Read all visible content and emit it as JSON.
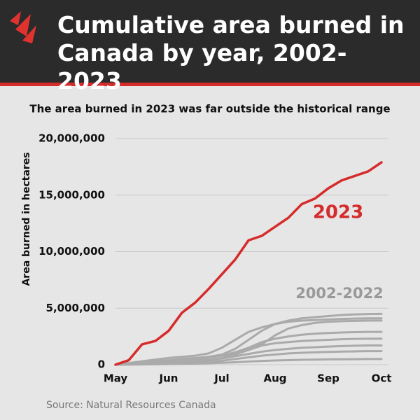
{
  "chart_data": {
    "type": "line",
    "title": "Cumulative area burned in Canada by year, 2002-2023",
    "subtitle": "The area burned in 2023 was far outside the historical range",
    "y_label": "Area burned in hectares",
    "source": "Source: Natural Resources Canada",
    "categories": [
      "May",
      null,
      null,
      null,
      "Jun",
      null,
      null,
      null,
      "Jul",
      null,
      null,
      null,
      "Aug",
      null,
      null,
      null,
      "Sep",
      null,
      null,
      null,
      "Oct"
    ],
    "ylim": [
      0,
      20000000
    ],
    "yticks": [
      0,
      {
        "value": 5000000,
        "label": "5,000,000"
      },
      {
        "value": 10000000,
        "label": "10,000,000"
      },
      {
        "value": 15000000,
        "label": "15,000,000"
      },
      {
        "value": 20000000,
        "label": "20,000,000"
      }
    ],
    "grid": true,
    "series": [
      {
        "name": "2023",
        "color": "#d62b2b",
        "values": [
          0,
          400000,
          1800000,
          2100000,
          3000000,
          4600000,
          5500000,
          6700000,
          8000000,
          9300000,
          11000000,
          11400000,
          12200000,
          13000000,
          14200000,
          14700000,
          15600000,
          16300000,
          16700000,
          17100000,
          17900000
        ]
      },
      {
        "name": "2002-2022",
        "color": "#aaaaaa",
        "values": [
          [
            0,
            100000,
            200000,
            300000,
            400000,
            500000,
            600000,
            700000,
            900000,
            1400000,
            2200000,
            3000000,
            3600000,
            3900000,
            4100000,
            4200000,
            4300000,
            4400000,
            4450000,
            4480000,
            4500000
          ],
          [
            0,
            150000,
            300000,
            450000,
            600000,
            700000,
            800000,
            1000000,
            1500000,
            2200000,
            2900000,
            3300000,
            3600000,
            3800000,
            3900000,
            3950000,
            4000000,
            4050000,
            4080000,
            4100000,
            4100000
          ],
          [
            0,
            50000,
            100000,
            150000,
            250000,
            350000,
            450000,
            600000,
            800000,
            1000000,
            1300000,
            1800000,
            2600000,
            3200000,
            3500000,
            3700000,
            3800000,
            3850000,
            3880000,
            3900000,
            3900000
          ],
          [
            0,
            80000,
            150000,
            250000,
            350000,
            450000,
            550000,
            650000,
            800000,
            1100000,
            1500000,
            2000000,
            2300000,
            2500000,
            2650000,
            2750000,
            2800000,
            2850000,
            2880000,
            2900000,
            2900000
          ],
          [
            0,
            30000,
            60000,
            100000,
            150000,
            200000,
            300000,
            400000,
            600000,
            900000,
            1300000,
            1700000,
            1900000,
            2000000,
            2100000,
            2150000,
            2200000,
            2250000,
            2280000,
            2300000,
            2300000
          ],
          [
            0,
            40000,
            80000,
            120000,
            180000,
            250000,
            320000,
            400000,
            550000,
            750000,
            950000,
            1150000,
            1300000,
            1400000,
            1500000,
            1550000,
            1600000,
            1650000,
            1680000,
            1700000,
            1700000
          ],
          [
            0,
            20000,
            50000,
            80000,
            120000,
            160000,
            200000,
            260000,
            350000,
            500000,
            650000,
            800000,
            900000,
            1000000,
            1050000,
            1100000,
            1130000,
            1160000,
            1180000,
            1200000,
            1200000
          ],
          [
            0,
            10000,
            20000,
            40000,
            60000,
            80000,
            100000,
            130000,
            170000,
            220000,
            280000,
            330000,
            370000,
            400000,
            430000,
            450000,
            470000,
            480000,
            490000,
            500000,
            500000
          ]
        ]
      }
    ]
  }
}
